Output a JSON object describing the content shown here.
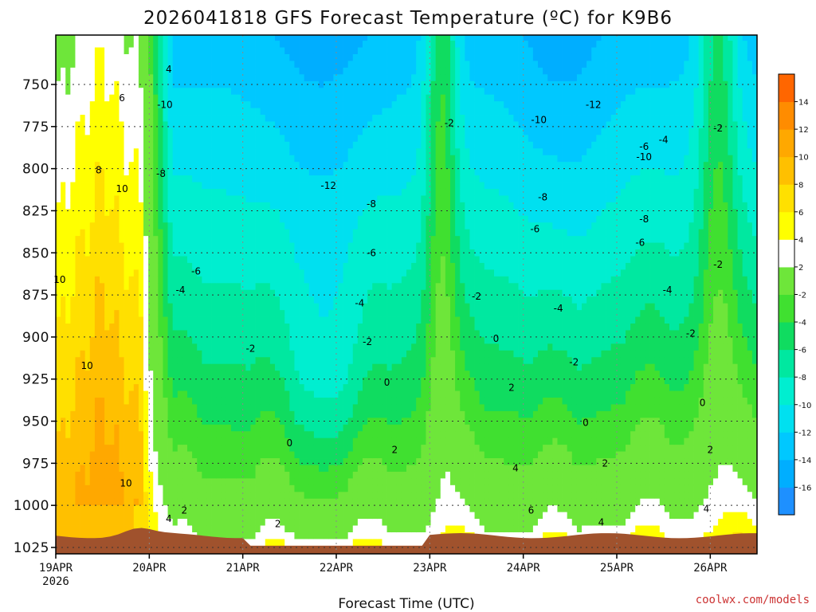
{
  "title": "2026041818 GFS Forecast Temperature (ºC) for K9B6",
  "credit": "coolwx.com/models",
  "chart_data": {
    "type": "heatmap",
    "title": "2026041818 GFS Forecast Temperature (ºC) for K9B6",
    "xlabel": "Forecast Time (UTC)",
    "ylabel": "",
    "y_axis": "pressure (hPa), inverted",
    "ylim": [
      1030,
      720
    ],
    "yticks": [
      750,
      775,
      800,
      825,
      850,
      875,
      900,
      925,
      950,
      975,
      1000,
      1025
    ],
    "xlim": [
      0,
      180
    ],
    "xticks": [
      {
        "hour": 0,
        "label": "19APR",
        "sublabel": "2026"
      },
      {
        "hour": 24,
        "label": "20APR",
        "sublabel": ""
      },
      {
        "hour": 48,
        "label": "21APR",
        "sublabel": ""
      },
      {
        "hour": 72,
        "label": "22APR",
        "sublabel": ""
      },
      {
        "hour": 96,
        "label": "23APR",
        "sublabel": ""
      },
      {
        "hour": 120,
        "label": "24APR",
        "sublabel": ""
      },
      {
        "hour": 144,
        "label": "25APR",
        "sublabel": ""
      },
      {
        "hour": 168,
        "label": "26APR",
        "sublabel": ""
      }
    ],
    "grid": true,
    "colorbar": {
      "levels": [
        -16,
        -14,
        -12,
        -10,
        -8,
        -6,
        -4,
        -2,
        2,
        4,
        6,
        8,
        10,
        12,
        14
      ],
      "colors": [
        "#1e90ff",
        "#00aeff",
        "#00c8ff",
        "#00e0f0",
        "#00eed0",
        "#00e8a0",
        "#10dc60",
        "#40e030",
        "#6ee63a",
        "#ffffff",
        "#ffff00",
        "#ffe000",
        "#ffc000",
        "#ffa800",
        "#ff8c00",
        "#ff6600"
      ]
    },
    "contour_labels": [
      {
        "hour": 28,
        "p": 762,
        "text": "-10"
      },
      {
        "hour": 27,
        "p": 803,
        "text": "-8"
      },
      {
        "hour": 36,
        "p": 861,
        "text": "-6"
      },
      {
        "hour": 32,
        "p": 872,
        "text": "-4"
      },
      {
        "hour": 50,
        "p": 907,
        "text": "-2"
      },
      {
        "hour": 70,
        "p": 810,
        "text": "-12"
      },
      {
        "hour": 81,
        "p": 821,
        "text": "-8"
      },
      {
        "hour": 81,
        "p": 850,
        "text": "-6"
      },
      {
        "hour": 78,
        "p": 880,
        "text": "-4"
      },
      {
        "hour": 80,
        "p": 903,
        "text": "-2"
      },
      {
        "hour": 85,
        "p": 927,
        "text": "0"
      },
      {
        "hour": 87,
        "p": 967,
        "text": "2"
      },
      {
        "hour": 60,
        "p": 963,
        "text": "0"
      },
      {
        "hour": 57,
        "p": 1011,
        "text": "2"
      },
      {
        "hour": 1,
        "p": 866,
        "text": "10"
      },
      {
        "hour": 8,
        "p": 917,
        "text": "10"
      },
      {
        "hour": 18,
        "p": 987,
        "text": "10"
      },
      {
        "hour": 17,
        "p": 812,
        "text": "10"
      },
      {
        "hour": 11,
        "p": 801,
        "text": "8"
      },
      {
        "hour": 17,
        "p": 758,
        "text": "6"
      },
      {
        "hour": 29,
        "p": 1008,
        "text": "4"
      },
      {
        "hour": 33,
        "p": 1003,
        "text": "2"
      },
      {
        "hour": 29,
        "p": 741,
        "text": "4"
      },
      {
        "hour": 101,
        "p": 773,
        "text": "-2"
      },
      {
        "hour": 108,
        "p": 876,
        "text": "-2"
      },
      {
        "hour": 113,
        "p": 901,
        "text": "0"
      },
      {
        "hour": 117,
        "p": 930,
        "text": "2"
      },
      {
        "hour": 122,
        "p": 1003,
        "text": "6"
      },
      {
        "hour": 118,
        "p": 978,
        "text": "4"
      },
      {
        "hour": 124,
        "p": 771,
        "text": "-10"
      },
      {
        "hour": 125,
        "p": 817,
        "text": "-8"
      },
      {
        "hour": 123,
        "p": 836,
        "text": "-6"
      },
      {
        "hour": 129,
        "p": 883,
        "text": "-4"
      },
      {
        "hour": 133,
        "p": 915,
        "text": "-2"
      },
      {
        "hour": 136,
        "p": 951,
        "text": "0"
      },
      {
        "hour": 140,
        "p": 1010,
        "text": "4"
      },
      {
        "hour": 141,
        "p": 975,
        "text": "2"
      },
      {
        "hour": 138,
        "p": 762,
        "text": "-12"
      },
      {
        "hour": 151,
        "p": 787,
        "text": "-6"
      },
      {
        "hour": 151,
        "p": 793,
        "text": "-10"
      },
      {
        "hour": 156,
        "p": 783,
        "text": "-4"
      },
      {
        "hour": 151,
        "p": 830,
        "text": "-8"
      },
      {
        "hour": 150,
        "p": 844,
        "text": "-6"
      },
      {
        "hour": 157,
        "p": 872,
        "text": "-4"
      },
      {
        "hour": 163,
        "p": 898,
        "text": "-2"
      },
      {
        "hour": 166,
        "p": 939,
        "text": "0"
      },
      {
        "hour": 168,
        "p": 967,
        "text": "2"
      },
      {
        "hour": 167,
        "p": 1002,
        "text": "4"
      },
      {
        "hour": 170,
        "p": 776,
        "text": "-2"
      },
      {
        "hour": 170,
        "p": 857,
        "text": "-2"
      }
    ]
  }
}
